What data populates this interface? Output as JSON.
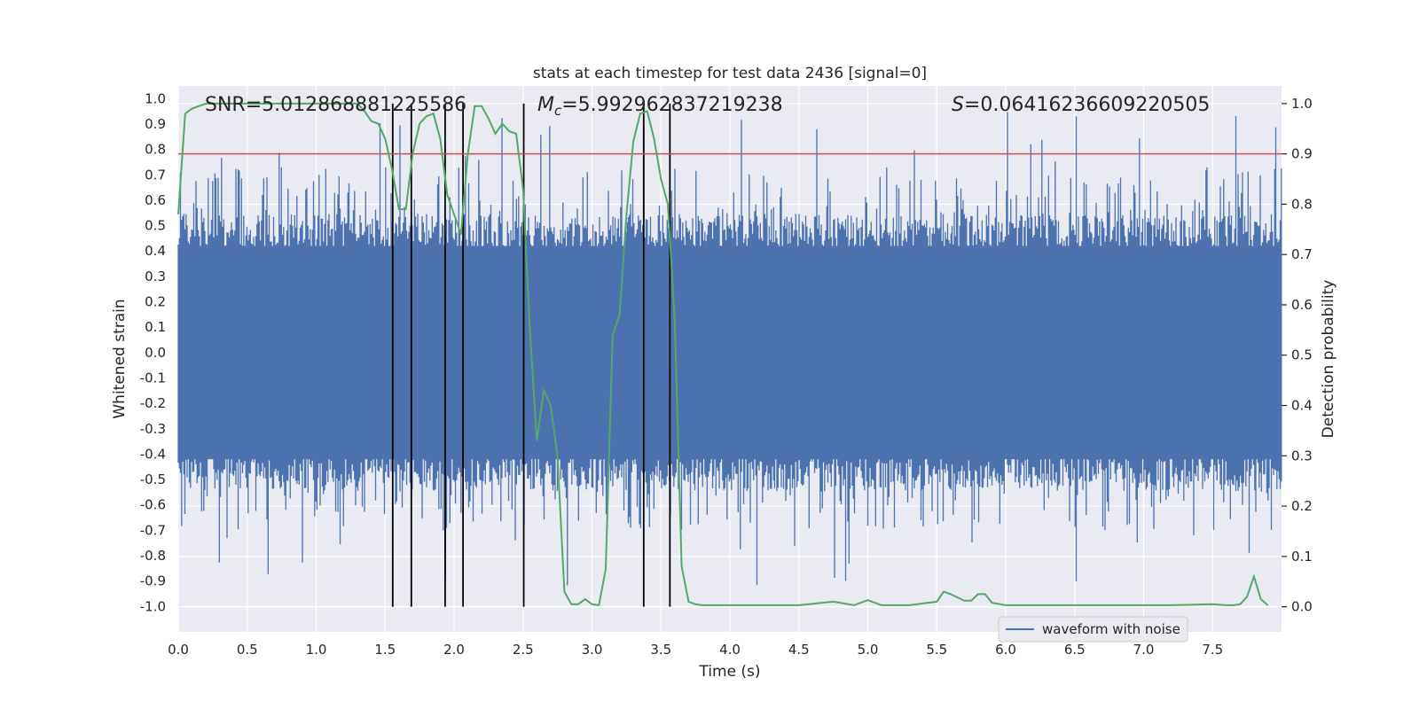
{
  "chart_data": {
    "type": "line",
    "title": "stats at each timestep for test data 2436 [signal=0]",
    "xlabel": "Time (s)",
    "ylabel_left": "Whitened strain",
    "ylabel_right": "Detection probability",
    "xlim": [
      0.0,
      8.0
    ],
    "ylim_left": [
      -1.1,
      1.05
    ],
    "ylim_right": [
      -0.05,
      1.035
    ],
    "x_ticks": [
      "0.0",
      "0.5",
      "1.0",
      "1.5",
      "2.0",
      "2.5",
      "3.0",
      "3.5",
      "4.0",
      "4.5",
      "5.0",
      "5.5",
      "6.0",
      "6.5",
      "7.0",
      "7.5"
    ],
    "y_ticks_left": [
      "1.0",
      "0.9",
      "0.8",
      "0.7",
      "0.6",
      "0.5",
      "0.4",
      "0.3",
      "0.2",
      "0.1",
      "0.0",
      "-0.1",
      "-0.2",
      "-0.3",
      "-0.4",
      "-0.5",
      "-0.6",
      "-0.7",
      "-0.8",
      "-0.9",
      "-1.0"
    ],
    "y_ticks_right": [
      "1.0",
      "0.9",
      "0.8",
      "0.7",
      "0.6",
      "0.5",
      "0.4",
      "0.3",
      "0.2",
      "0.1",
      "0.0"
    ],
    "annotations": {
      "snr": "SNR=5.012868881225586",
      "mc_symbol": "M",
      "mc_sub": "c",
      "mc_value": "=5.992962837219238",
      "s_symbol": "S",
      "s_value": "=0.06416236609220505"
    },
    "threshold": 0.9,
    "threshold_color": "#c44e52",
    "detection_vlines": [
      1.555,
      1.69,
      1.935,
      2.065,
      2.505,
      3.375,
      3.565
    ],
    "waveform": {
      "name": "waveform with noise",
      "color": "#4c72b0",
      "core_amplitude": 0.42,
      "spike_max": 0.95,
      "duration": 8.0
    },
    "probability": {
      "name": "Detection probability",
      "color": "#55a868",
      "x": [
        0.0,
        0.05,
        0.1,
        0.15,
        0.2,
        0.3,
        0.5,
        0.7,
        0.9,
        1.0,
        1.2,
        1.3,
        1.35,
        1.4,
        1.45,
        1.5,
        1.55,
        1.6,
        1.65,
        1.7,
        1.75,
        1.8,
        1.85,
        1.9,
        1.95,
        2.0,
        2.05,
        2.1,
        2.15,
        2.2,
        2.25,
        2.3,
        2.35,
        2.4,
        2.45,
        2.5,
        2.55,
        2.6,
        2.65,
        2.7,
        2.75,
        2.8,
        2.85,
        2.9,
        2.95,
        3.0,
        3.05,
        3.1,
        3.15,
        3.2,
        3.25,
        3.3,
        3.35,
        3.4,
        3.45,
        3.5,
        3.55,
        3.6,
        3.65,
        3.7,
        3.75,
        3.8,
        3.85,
        3.9,
        4.0,
        4.2,
        4.5,
        4.75,
        4.9,
        5.0,
        5.1,
        5.3,
        5.5,
        5.55,
        5.6,
        5.7,
        5.75,
        5.8,
        5.85,
        5.9,
        6.0,
        6.5,
        7.0,
        7.2,
        7.5,
        7.6,
        7.65,
        7.7,
        7.75,
        7.8,
        7.85,
        7.9
      ],
      "values": [
        0.78,
        0.98,
        0.99,
        0.995,
        1.0,
        1.0,
        1.0,
        1.0,
        1.0,
        1.0,
        1.0,
        1.0,
        0.985,
        0.965,
        0.96,
        0.93,
        0.87,
        0.79,
        0.79,
        0.9,
        0.96,
        0.975,
        0.98,
        0.93,
        0.82,
        0.78,
        0.74,
        0.9,
        0.995,
        0.995,
        0.97,
        0.94,
        0.96,
        0.945,
        0.94,
        0.83,
        0.55,
        0.33,
        0.43,
        0.4,
        0.3,
        0.03,
        0.005,
        0.005,
        0.015,
        0.005,
        0.003,
        0.075,
        0.54,
        0.58,
        0.78,
        0.925,
        0.98,
        0.985,
        0.93,
        0.85,
        0.8,
        0.57,
        0.08,
        0.01,
        0.005,
        0.003,
        0.003,
        0.003,
        0.003,
        0.003,
        0.003,
        0.01,
        0.003,
        0.013,
        0.003,
        0.003,
        0.01,
        0.03,
        0.025,
        0.012,
        0.012,
        0.025,
        0.025,
        0.008,
        0.003,
        0.003,
        0.003,
        0.003,
        0.005,
        0.003,
        0.003,
        0.005,
        0.02,
        0.06,
        0.015,
        0.003
      ]
    }
  }
}
